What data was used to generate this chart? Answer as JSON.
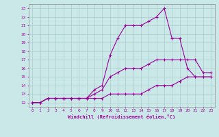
{
  "bg_color": "#cbe8e8",
  "grid_color": "#aacccc",
  "line_color": "#990099",
  "xlabel": "Windchill (Refroidissement éolien,°C)",
  "xlim": [
    -0.5,
    23.5
  ],
  "ylim": [
    11.5,
    23.5
  ],
  "yticks": [
    12,
    13,
    14,
    15,
    16,
    17,
    18,
    19,
    20,
    21,
    22,
    23
  ],
  "xticks": [
    0,
    1,
    2,
    3,
    4,
    5,
    6,
    7,
    8,
    9,
    10,
    11,
    12,
    13,
    14,
    15,
    16,
    17,
    18,
    19,
    20,
    21,
    22,
    23
  ],
  "series": [
    {
      "x": [
        0,
        1,
        2,
        3,
        4,
        5,
        6,
        7,
        8,
        9,
        10,
        11,
        12,
        13,
        14,
        15,
        16,
        17,
        18,
        19,
        20,
        21,
        22,
        23
      ],
      "y": [
        12,
        12,
        12.5,
        12.5,
        12.5,
        12.5,
        12.5,
        12.5,
        12.5,
        12.5,
        13,
        13,
        13,
        13,
        13,
        13.5,
        14,
        14,
        14,
        14.5,
        15,
        15,
        15,
        15
      ]
    },
    {
      "x": [
        0,
        1,
        2,
        3,
        4,
        5,
        6,
        7,
        8,
        9,
        10,
        11,
        12,
        13,
        14,
        15,
        16,
        17,
        18,
        19,
        20,
        21,
        22,
        23
      ],
      "y": [
        12,
        12,
        12.5,
        12.5,
        12.5,
        12.5,
        12.5,
        12.5,
        13,
        13.5,
        15,
        15.5,
        16,
        16,
        16,
        16.5,
        17,
        17,
        17,
        17,
        17,
        17,
        15.5,
        15.5
      ]
    },
    {
      "x": [
        0,
        1,
        2,
        3,
        4,
        5,
        6,
        7,
        8,
        9,
        10,
        11,
        12,
        13,
        14,
        15,
        16,
        17,
        18,
        19,
        20,
        21,
        22,
        23
      ],
      "y": [
        12,
        12,
        12.5,
        12.5,
        12.5,
        12.5,
        12.5,
        12.5,
        13.5,
        14,
        17.5,
        19.5,
        21,
        21,
        21,
        21.5,
        22,
        23,
        19.5,
        19.5,
        16,
        15,
        15,
        15
      ]
    }
  ]
}
